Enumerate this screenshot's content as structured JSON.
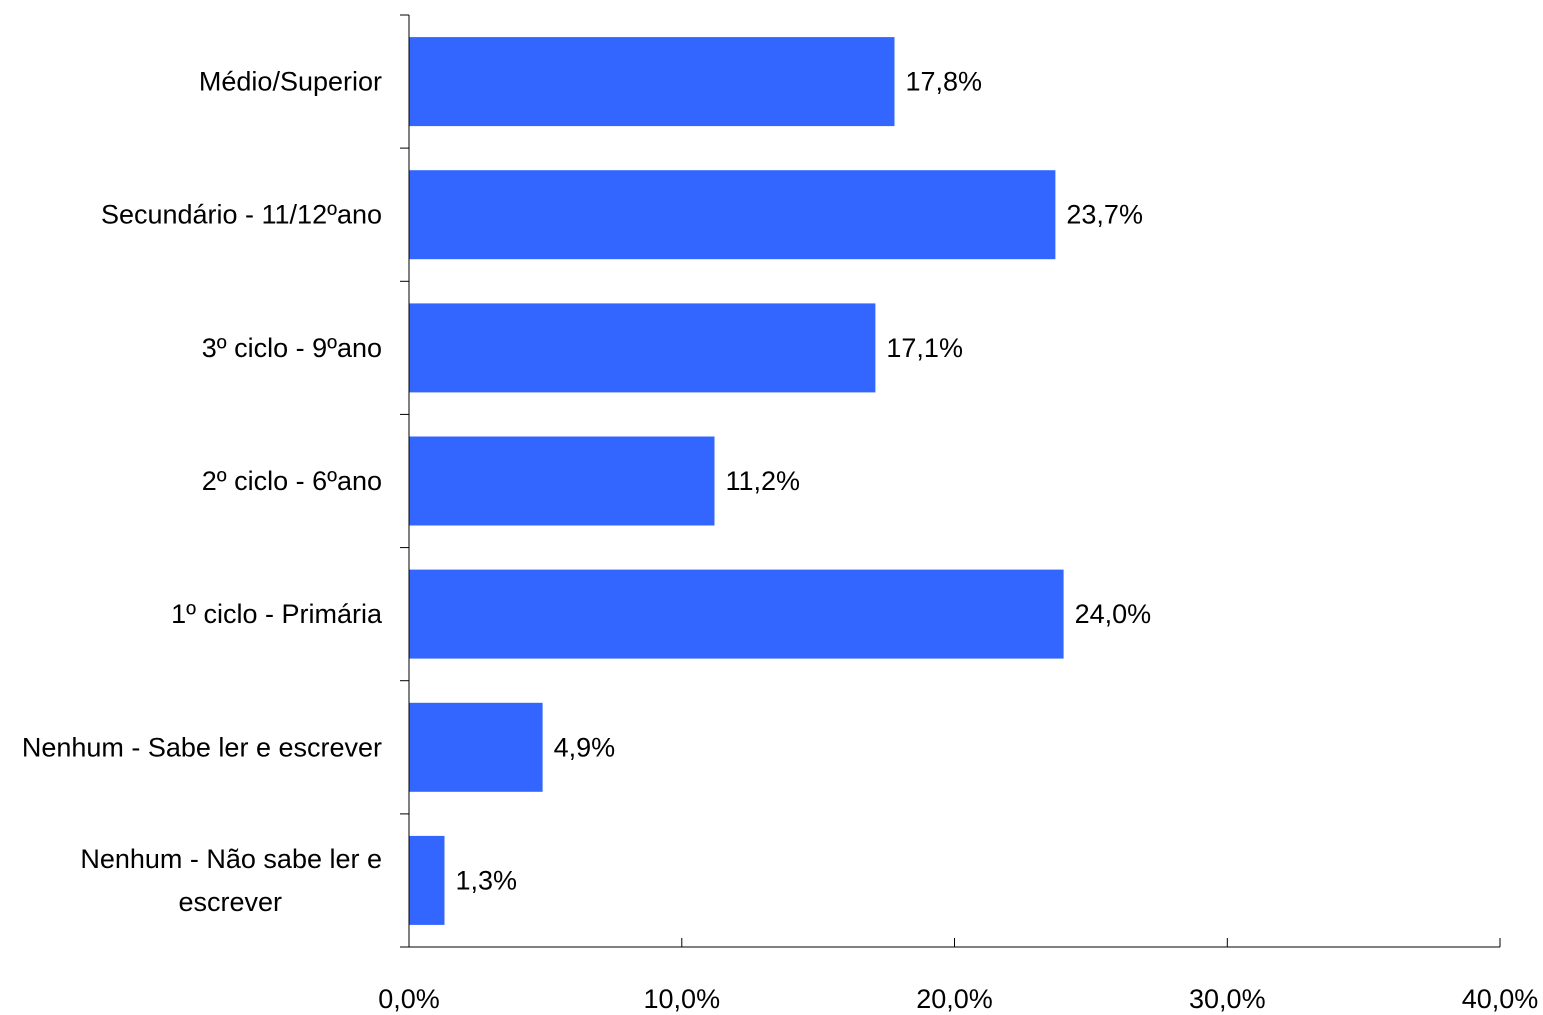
{
  "chart_data": {
    "type": "bar",
    "orientation": "horizontal",
    "categories": [
      "Médio/Superior",
      "Secundário - 11/12ºano",
      "3º ciclo - 9ºano",
      "2º ciclo - 6ºano",
      "1º ciclo - Primária",
      "Nenhum - Sabe ler e escrever",
      "Nenhum - Não sabe ler e escrever"
    ],
    "category_label_lines": [
      [
        "Médio/Superior"
      ],
      [
        "Secundário - 11/12ºano"
      ],
      [
        "3º ciclo - 9ºano"
      ],
      [
        "2º ciclo - 6ºano"
      ],
      [
        "1º ciclo - Primária"
      ],
      [
        "Nenhum - Sabe ler e escrever"
      ],
      [
        "Nenhum - Não sabe ler e",
        "escrever"
      ]
    ],
    "values": [
      17.8,
      23.7,
      17.1,
      11.2,
      24.0,
      4.9,
      1.3
    ],
    "data_labels": [
      "17,8%",
      "23,7%",
      "17,1%",
      "11,2%",
      "24,0%",
      "4,9%",
      "1,3%"
    ],
    "x_ticks": [
      0,
      10,
      20,
      30,
      40
    ],
    "x_tick_labels": [
      "0,0%",
      "10,0%",
      "20,0%",
      "30,0%",
      "40,0%"
    ],
    "xlim": [
      0,
      40
    ],
    "title": "",
    "xlabel": "",
    "ylabel": "",
    "bar_color": "#3366FF",
    "grid": false,
    "legend": "none"
  }
}
